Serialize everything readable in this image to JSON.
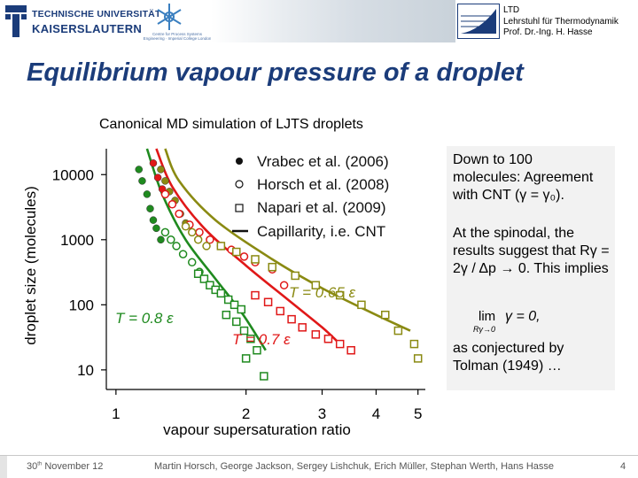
{
  "header": {
    "university_line1": "TECHNISCHE UNIVERSITÄT",
    "university_line2": "KAISERSLAUTERN",
    "cpse_text": "Centre for Process Systems Engineering · Imperial College London",
    "ltd_lines": [
      "LTD",
      "Lehrstuhl für Thermodynamik",
      "Prof. Dr.-Ing. H. Hasse"
    ]
  },
  "slide": {
    "title": "Equilibrium vapour pressure of a droplet",
    "subtitle": "Canonical MD simulation of LJTS droplets"
  },
  "notes": {
    "p1": "Down to 100 molecules: Agreement with CNT (γ = γ₀).",
    "p2": "At the spinodal, the results suggest that Rγ = 2γ / Δp → 0. This implies",
    "formula_lim": "lim",
    "formula_sub": "Rγ→0",
    "formula_expr": "γ = 0,",
    "p3": "as conjectured by Tolman (1949) …"
  },
  "footer": {
    "date_day": "30",
    "date_sup": "th",
    "date_rest": "November 12",
    "authors": "Martin Horsch, George Jackson, Sergey Lishchuk, Erich Müller, Stephan Werth, Hans Hasse",
    "page": "4"
  },
  "colors": {
    "title": "#1b3c7a",
    "green": "#1f8a1f",
    "red": "#e01818",
    "olive": "#8a8a12"
  },
  "chart_data": {
    "type": "scatter",
    "xlabel": "vapour supersaturation ratio",
    "ylabel": "droplet size (molecules)",
    "xscale": "log",
    "yscale": "log",
    "xlim": [
      0.95,
      5.2
    ],
    "ylim": [
      5,
      25000
    ],
    "xticks": [
      1,
      2,
      3,
      4,
      5
    ],
    "xtick_labels": [
      "1",
      "2",
      "3",
      "4",
      "5"
    ],
    "yticks": [
      10,
      100,
      1000,
      10000
    ],
    "ytick_labels": [
      "10",
      "100",
      "1000",
      "10000"
    ],
    "legend": [
      "Vrabec et al. (2006)",
      "Horsch et al. (2008)",
      "Napari et al. (2009)",
      "Capillarity, i.e. CNT"
    ],
    "legend_position": "top-right",
    "temperatures": [
      {
        "label": "T = 0.8 ε",
        "color": "#1f8a1f"
      },
      {
        "label": "T = 0.7 ε",
        "color": "#e01818"
      },
      {
        "label": "T = 0.65 ε",
        "color": "#8a8a12"
      }
    ],
    "series": [
      {
        "name": "CNT T = 0.8",
        "kind": "line",
        "color": "#1f8a1f",
        "x": [
          1.18,
          1.28,
          1.45,
          1.7,
          1.97,
          2.22
        ],
        "y": [
          25000,
          5000,
          1000,
          250,
          70,
          20
        ]
      },
      {
        "name": "CNT T = 0.7",
        "kind": "line",
        "color": "#e01818",
        "x": [
          1.24,
          1.35,
          1.6,
          2.0,
          2.5,
          3.0,
          3.3
        ],
        "y": [
          25000,
          6500,
          1500,
          400,
          120,
          45,
          25
        ]
      },
      {
        "name": "CNT T = 0.65",
        "kind": "line",
        "color": "#8a8a12",
        "x": [
          1.3,
          1.4,
          1.7,
          2.3,
          3.0,
          4.0,
          4.8
        ],
        "y": [
          25000,
          8000,
          2000,
          500,
          180,
          70,
          40
        ]
      },
      {
        "name": "Vrabec et al. (2006) T = 0.8",
        "kind": "marker",
        "marker": "filled-circle",
        "color": "#1f8a1f",
        "x": [
          1.13,
          1.15,
          1.18,
          1.2,
          1.22,
          1.24,
          1.27
        ],
        "y": [
          12000,
          8000,
          5000,
          3000,
          2000,
          1500,
          1000
        ]
      },
      {
        "name": "Vrabec et al. (2006) T = 0.7",
        "kind": "marker",
        "marker": "filled-circle",
        "color": "#e01818",
        "x": [
          1.22,
          1.25,
          1.28
        ],
        "y": [
          15000,
          9000,
          6000
        ]
      },
      {
        "name": "Vrabec et al. (2006) T = 0.65",
        "kind": "marker",
        "marker": "filled-circle",
        "color": "#8a8a12",
        "x": [
          1.27,
          1.3,
          1.33,
          1.37,
          1.41,
          1.45
        ],
        "y": [
          12000,
          8000,
          5500,
          4000,
          2500,
          1800
        ]
      },
      {
        "name": "Horsch et al. (2008) T = 0.8",
        "kind": "marker",
        "marker": "open-circle",
        "color": "#1f8a1f",
        "x": [
          1.3,
          1.34,
          1.38,
          1.43,
          1.5,
          1.56
        ],
        "y": [
          1300,
          1000,
          800,
          600,
          450,
          320
        ]
      },
      {
        "name": "Horsch et al. (2008) T = 0.7",
        "kind": "marker",
        "marker": "open-circle",
        "color": "#e01818",
        "x": [
          1.3,
          1.35,
          1.4,
          1.48,
          1.56,
          1.65,
          1.75,
          1.85,
          1.98,
          2.1,
          2.3,
          2.45
        ],
        "y": [
          5000,
          3500,
          2500,
          1700,
          1300,
          1000,
          800,
          700,
          550,
          450,
          350,
          200
        ]
      },
      {
        "name": "Horsch et al. (2008) T = 0.65",
        "kind": "marker",
        "marker": "open-circle",
        "color": "#8a8a12",
        "x": [
          1.45,
          1.5,
          1.55,
          1.62
        ],
        "y": [
          1600,
          1300,
          1000,
          800
        ]
      },
      {
        "name": "Napari et al. (2009) T = 0.8",
        "kind": "marker",
        "marker": "open-square",
        "color": "#1f8a1f",
        "x": [
          1.55,
          1.6,
          1.65,
          1.7,
          1.75,
          1.82,
          1.88,
          1.95,
          1.8,
          1.9,
          1.98,
          2.05,
          2.12,
          2.0,
          2.2
        ],
        "y": [
          300,
          250,
          200,
          170,
          150,
          120,
          100,
          85,
          70,
          55,
          40,
          30,
          20,
          15,
          8
        ]
      },
      {
        "name": "Napari et al. (2009) T = 0.7",
        "kind": "marker",
        "marker": "open-square",
        "color": "#e01818",
        "x": [
          2.1,
          2.25,
          2.4,
          2.55,
          2.7,
          2.9,
          3.1,
          3.3,
          3.5
        ],
        "y": [
          140,
          110,
          80,
          60,
          45,
          35,
          30,
          25,
          20
        ]
      },
      {
        "name": "Napari et al. (2009) T = 0.65",
        "kind": "marker",
        "marker": "open-square",
        "color": "#8a8a12",
        "x": [
          1.75,
          1.9,
          2.1,
          2.3,
          2.6,
          2.9,
          3.3,
          3.7,
          4.2,
          4.5,
          4.9,
          5.0
        ],
        "y": [
          800,
          650,
          500,
          380,
          280,
          200,
          140,
          100,
          70,
          40,
          25,
          15
        ]
      }
    ]
  }
}
